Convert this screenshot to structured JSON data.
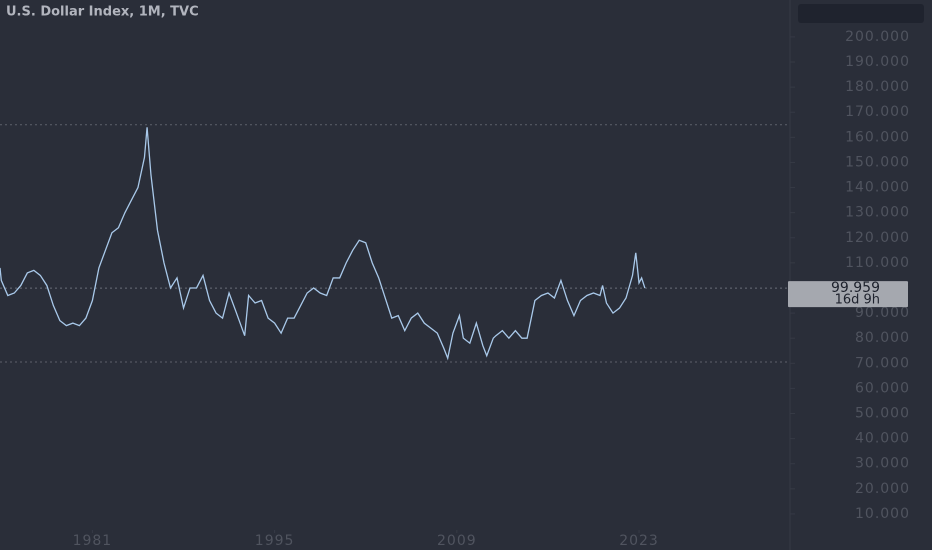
{
  "chart_data": {
    "type": "line",
    "title": "U.S. Dollar Index, 1M, TVC",
    "x": [
      1973.9,
      1974,
      1974.5,
      1975,
      1975.5,
      1976,
      1976.5,
      1977,
      1977.5,
      1978,
      1978.5,
      1979,
      1979.5,
      1980,
      1980.5,
      1981,
      1981.5,
      1982,
      1982.5,
      1983,
      1983.5,
      1984,
      1984.5,
      1985,
      1985.2,
      1985.5,
      1986,
      1986.5,
      1987,
      1987.5,
      1988,
      1988.5,
      1989,
      1989.5,
      1990,
      1990.5,
      1991,
      1991.5,
      1992,
      1992.7,
      1993,
      1993.5,
      1994,
      1994.5,
      1995,
      1995.5,
      1996,
      1996.5,
      1997,
      1997.5,
      1998,
      1998.5,
      1999,
      1999.5,
      2000,
      2000.5,
      2001,
      2001.5,
      2002,
      2002.5,
      2003,
      2003.5,
      2004,
      2004.5,
      2005,
      2005.5,
      2006,
      2006.5,
      2007,
      2007.5,
      2008,
      2008.3,
      2008.7,
      2009.2,
      2009.5,
      2010,
      2010.5,
      2011,
      2011.3,
      2011.8,
      2012,
      2012.5,
      2013,
      2013.5,
      2014,
      2014.4,
      2015,
      2015.5,
      2016,
      2016.5,
      2017,
      2017.5,
      2018,
      2018.5,
      2019,
      2019.5,
      2020,
      2020.2,
      2020.5,
      2021,
      2021.5,
      2022,
      2022.5,
      2022.75,
      2023,
      2023.2,
      2023.45
    ],
    "series": [
      {
        "color": "#a9c9ea",
        "values": [
          108,
          103,
          97,
          98,
          101,
          106,
          107,
          105,
          101,
          93,
          87,
          85,
          86,
          85,
          88,
          95,
          108,
          115,
          122,
          124,
          130,
          135,
          140,
          152,
          164,
          145,
          123,
          110,
          100,
          104,
          92,
          100,
          100,
          105,
          95,
          90,
          88,
          98,
          91,
          81,
          97,
          94,
          95,
          88,
          86,
          82,
          88,
          88,
          93,
          98,
          100,
          98,
          97,
          104,
          104,
          110,
          115,
          119,
          118,
          110,
          104,
          96,
          88,
          89,
          83,
          88,
          90,
          86,
          84,
          82,
          76,
          72,
          82,
          89,
          80,
          78,
          86,
          77,
          73,
          80,
          81,
          83,
          80,
          83,
          80,
          80,
          95,
          97,
          98,
          96,
          103,
          95,
          89,
          95,
          97,
          98,
          97,
          101,
          94,
          90,
          92,
          96,
          105,
          114,
          102,
          104,
          99.959
        ]
      }
    ],
    "current_price": 99.959,
    "countdown": "16d 9h",
    "levels": [
      165,
      70.5
    ],
    "xlim": [
      1973.9,
      2034.6
    ],
    "xticks": [
      1981,
      1995,
      2009,
      2023
    ],
    "ylim": [
      4.4,
      214.7
    ],
    "yticks": [
      {
        "value": 10,
        "label": "10.000"
      },
      {
        "value": 20,
        "label": "20.000"
      },
      {
        "value": 30,
        "label": "30.000"
      },
      {
        "value": 40,
        "label": "40.000"
      },
      {
        "value": 50,
        "label": "50.000"
      },
      {
        "value": 60,
        "label": "60.000"
      },
      {
        "value": 70,
        "label": "70.000"
      },
      {
        "value": 80,
        "label": "80.000"
      },
      {
        "value": 90,
        "label": "90.000"
      },
      {
        "value": 100,
        "label": "100.000"
      },
      {
        "value": 110,
        "label": "110.000"
      },
      {
        "value": 120,
        "label": "120.000"
      },
      {
        "value": 130,
        "label": "130.000"
      },
      {
        "value": 140,
        "label": "140.000"
      },
      {
        "value": 150,
        "label": "150.000"
      },
      {
        "value": 160,
        "label": "160.000"
      },
      {
        "value": 170,
        "label": "170.000"
      },
      {
        "value": 180,
        "label": "180.000"
      },
      {
        "value": 190,
        "label": "190.000"
      },
      {
        "value": 200,
        "label": "200.000"
      }
    ]
  }
}
